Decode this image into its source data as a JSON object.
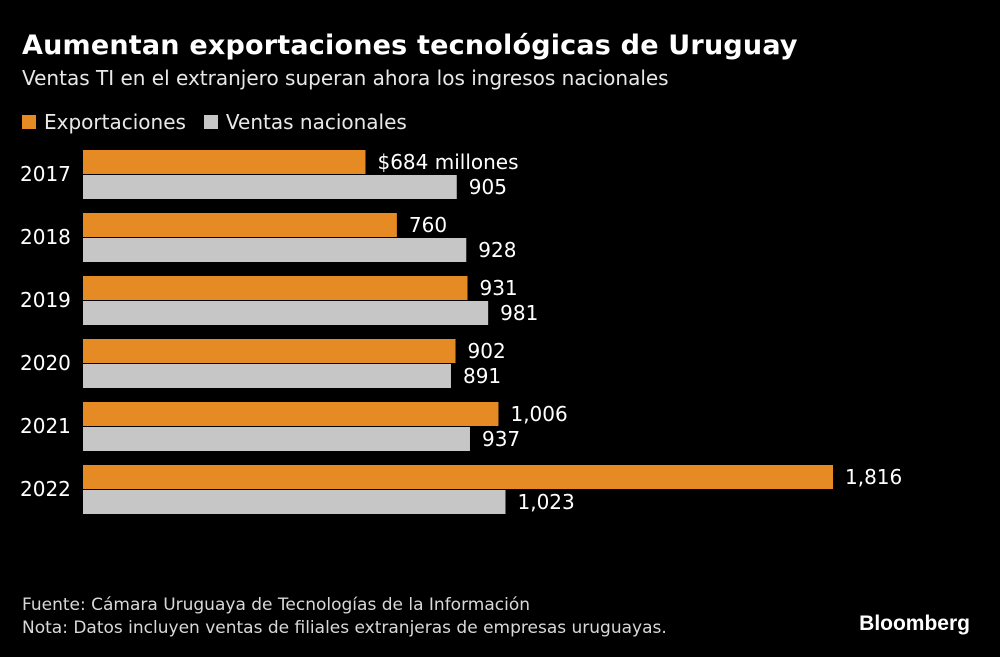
{
  "title": "Aumentan exportaciones tecnológicas de Uruguay",
  "subtitle": "Ventas TI en el extranjero superan ahora los ingresos nacionales",
  "legend": [
    {
      "name": "Exportaciones",
      "color": "#e68a24"
    },
    {
      "name": "Ventas nacionales",
      "color": "#c6c6c6"
    }
  ],
  "footer": {
    "source": "Fuente: Cámara Uruguaya de Tecnologías de la Información",
    "note": "Nota: Datos incluyen ventas de filiales extranjeras de empresas uruguayas."
  },
  "brand": "Bloomberg",
  "chart_data": {
    "type": "bar",
    "orientation": "horizontal",
    "categories": [
      "2017",
      "2018",
      "2019",
      "2020",
      "2021",
      "2022"
    ],
    "series": [
      {
        "name": "Exportaciones",
        "color": "#e68a24",
        "values": [
          684,
          760,
          931,
          902,
          1006,
          1816
        ],
        "labels": [
          "$684 millones",
          "760",
          "931",
          "902",
          "1,006",
          "1,816"
        ]
      },
      {
        "name": "Ventas nacionales",
        "color": "#c6c6c6",
        "values": [
          905,
          928,
          981,
          891,
          937,
          1023
        ],
        "labels": [
          "905",
          "928",
          "981",
          "891",
          "937",
          "1,023"
        ]
      }
    ],
    "xlim": [
      0,
      1816
    ],
    "grid": false,
    "legend_position": "top-left"
  }
}
